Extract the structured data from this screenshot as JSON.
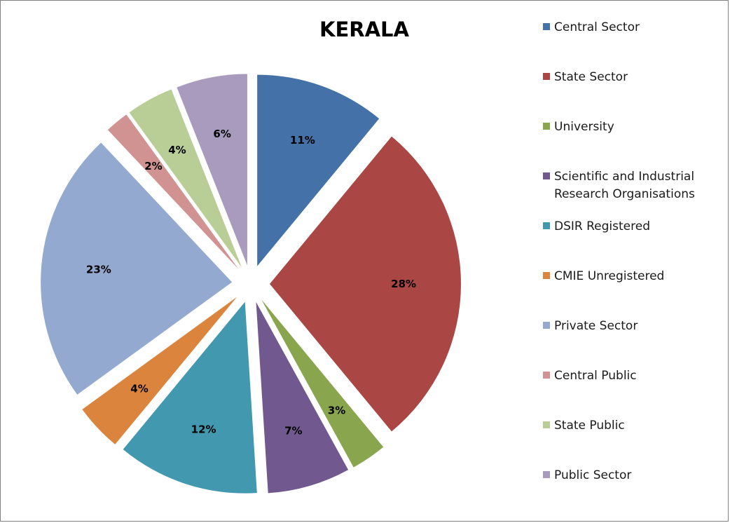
{
  "chart_data": {
    "type": "pie",
    "title": "KERALA",
    "exploded": true,
    "legend_position": "right",
    "slices": [
      {
        "label": "Central Sector",
        "value": 11,
        "display": "11%",
        "color": "#4472A8"
      },
      {
        "label": "State Sector",
        "value": 28,
        "display": "28%",
        "color": "#AA4643"
      },
      {
        "label": "University",
        "value": 3,
        "display": "3%",
        "color": "#89A54E"
      },
      {
        "label": "Scientific and Industrial Research Organisations",
        "value": 7,
        "display": "7%",
        "color": "#71588F"
      },
      {
        "label": "DSIR Registered",
        "value": 12,
        "display": "12%",
        "color": "#4198AF"
      },
      {
        "label": "CMIE Unregistered",
        "value": 4,
        "display": "4%",
        "color": "#DB843D"
      },
      {
        "label": "Private Sector",
        "value": 23,
        "display": "23%",
        "color": "#93A9CF"
      },
      {
        "label": "Central Public",
        "value": 2,
        "display": "2%",
        "color": "#D19392"
      },
      {
        "label": "State Public",
        "value": 4,
        "display": "4%",
        "color": "#B9CD96"
      },
      {
        "label": "Public Sector",
        "value": 6,
        "display": "6%",
        "color": "#A99BBD"
      }
    ],
    "legend_lines": [
      [
        "Central Sector"
      ],
      [
        "State Sector"
      ],
      [
        "University"
      ],
      [
        "Scientific and Industrial",
        "Research Organisations"
      ],
      [
        "DSIR Registered"
      ],
      [
        "CMIE Unregistered"
      ],
      [
        "Private Sector"
      ],
      [
        "Central Public"
      ],
      [
        "State Public"
      ],
      [
        "Public Sector"
      ]
    ]
  }
}
